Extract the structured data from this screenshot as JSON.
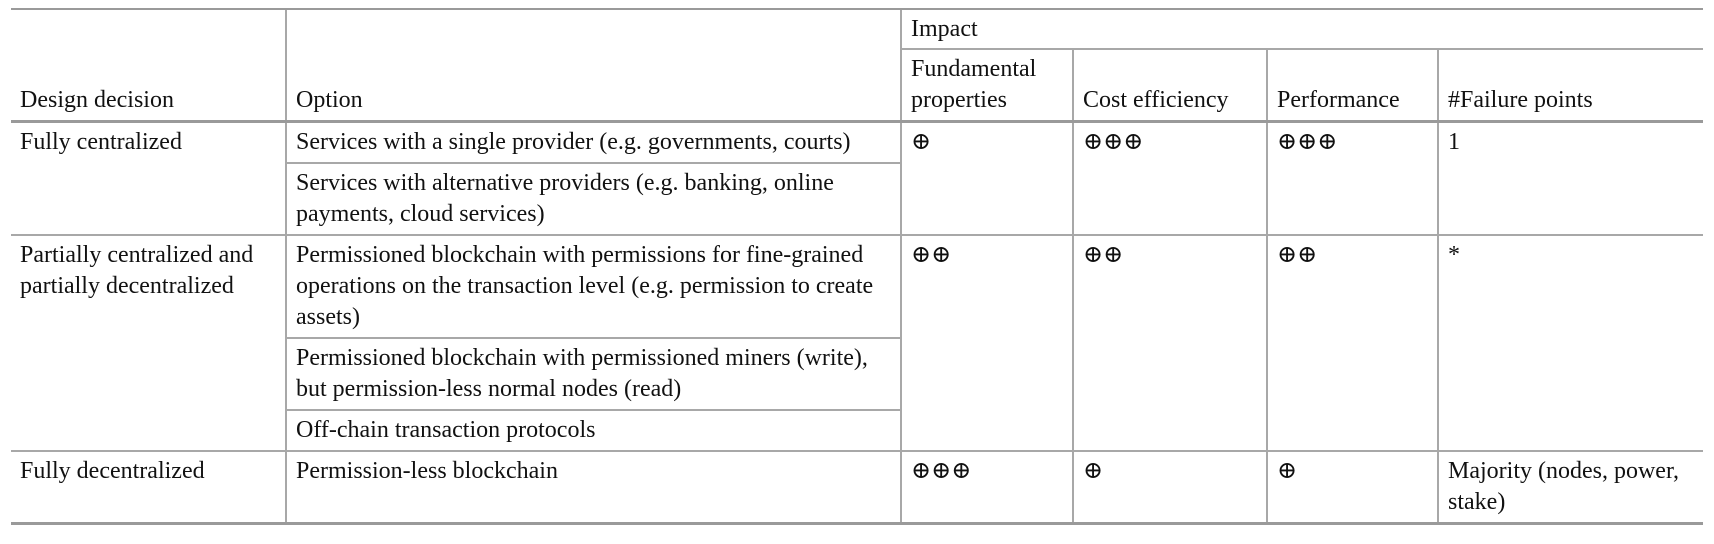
{
  "header": {
    "design_decision": "Design decision",
    "option": "Option",
    "impact": "Impact",
    "fundamental": "Fundamental properties",
    "cost": "Cost efficiency",
    "performance": "Performance",
    "failure": "#Failure points"
  },
  "rows": [
    {
      "decision": "Fully centralized",
      "options": [
        "Services with a single provider (e.g. governments, courts)",
        "Services with alternative providers (e.g. banking, online payments, cloud services)"
      ],
      "fundamental": "⊕",
      "cost": "⊕⊕⊕",
      "performance": "⊕⊕⊕",
      "failure": "1"
    },
    {
      "decision": "Partially centralized and partially decentralized",
      "options": [
        "Permissioned blockchain with permissions for fine-grained operations on the transaction level (e.g. permission to create assets)",
        "Permissioned blockchain with permissioned miners (write), but permission-less normal nodes (read)",
        "Off-chain transaction protocols"
      ],
      "fundamental": "⊕⊕",
      "cost": "⊕⊕",
      "performance": "⊕⊕",
      "failure": "*"
    },
    {
      "decision": "Fully decentralized",
      "options": [
        "Permission-less blockchain"
      ],
      "fundamental": "⊕⊕⊕",
      "cost": "⊕",
      "performance": "⊕",
      "failure": "Majority (nodes, power, stake)"
    }
  ]
}
